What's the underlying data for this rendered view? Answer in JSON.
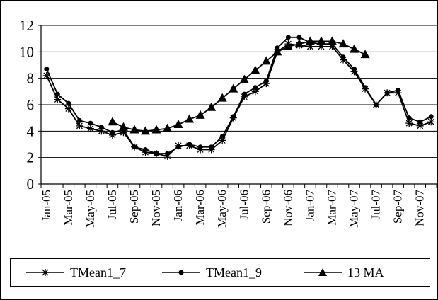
{
  "chart_data": {
    "type": "line",
    "title": "",
    "xlabel": "",
    "ylabel": "",
    "ylim": [
      0,
      12
    ],
    "y_ticks": [
      "0",
      "2",
      "4",
      "6",
      "8",
      "10",
      "12"
    ],
    "grid": "horizontal",
    "legend_position": "bottom",
    "x_tick_labels": [
      "Jan-05",
      "Mar-05",
      "May-05",
      "Jul-05",
      "Sep-05",
      "Nov-05",
      "Jan-06",
      "Mar-06",
      "May-06",
      "Jul-06",
      "Sep-06",
      "Nov-06",
      "Jan-07",
      "Mar-07",
      "May-07",
      "Jul-07",
      "Sep-07",
      "Nov-07"
    ],
    "x": [
      "Jan-05",
      "Feb-05",
      "Mar-05",
      "Apr-05",
      "May-05",
      "Jun-05",
      "Jul-05",
      "Aug-05",
      "Sep-05",
      "Oct-05",
      "Nov-05",
      "Dec-05",
      "Jan-06",
      "Feb-06",
      "Mar-06",
      "Apr-06",
      "May-06",
      "Jun-06",
      "Jul-06",
      "Aug-06",
      "Sep-06",
      "Oct-06",
      "Nov-06",
      "Dec-06",
      "Jan-07",
      "Feb-07",
      "Mar-07",
      "Apr-07",
      "May-07",
      "Jun-07",
      "Jul-07",
      "Aug-07",
      "Sep-07",
      "Oct-07",
      "Nov-07",
      "Dec-07"
    ],
    "series": [
      {
        "name": "TMean1_7",
        "marker": "asterisk",
        "values": [
          8.2,
          6.4,
          5.7,
          4.4,
          4.2,
          4.0,
          3.7,
          3.9,
          2.8,
          2.4,
          2.3,
          2.1,
          2.9,
          2.9,
          2.6,
          2.6,
          3.3,
          5.0,
          6.6,
          7.0,
          7.6,
          10.0,
          10.6,
          10.5,
          10.4,
          10.4,
          10.4,
          9.4,
          8.5,
          7.2,
          6.0,
          6.9,
          6.9,
          4.6,
          4.4,
          4.7
        ]
      },
      {
        "name": "TMean1_9",
        "marker": "circle",
        "values": [
          8.7,
          6.8,
          6.1,
          4.8,
          4.6,
          4.3,
          3.9,
          4.1,
          2.8,
          2.6,
          2.3,
          2.3,
          2.8,
          3.0,
          2.8,
          2.8,
          3.6,
          5.1,
          6.8,
          7.3,
          7.8,
          10.3,
          11.1,
          11.1,
          10.7,
          10.6,
          10.6,
          9.6,
          8.7,
          7.3,
          6.0,
          6.9,
          7.1,
          5.0,
          4.7,
          5.1
        ]
      },
      {
        "name": "13 MA",
        "marker": "triangle",
        "values": [
          null,
          null,
          null,
          null,
          null,
          null,
          4.7,
          4.3,
          4.1,
          4.0,
          4.1,
          4.2,
          4.5,
          4.9,
          5.2,
          5.8,
          6.5,
          7.2,
          7.9,
          8.6,
          9.3,
          10.0,
          10.4,
          10.6,
          10.8,
          10.8,
          10.8,
          10.6,
          10.2,
          9.8,
          null,
          null,
          null,
          null,
          null,
          null
        ]
      }
    ]
  }
}
